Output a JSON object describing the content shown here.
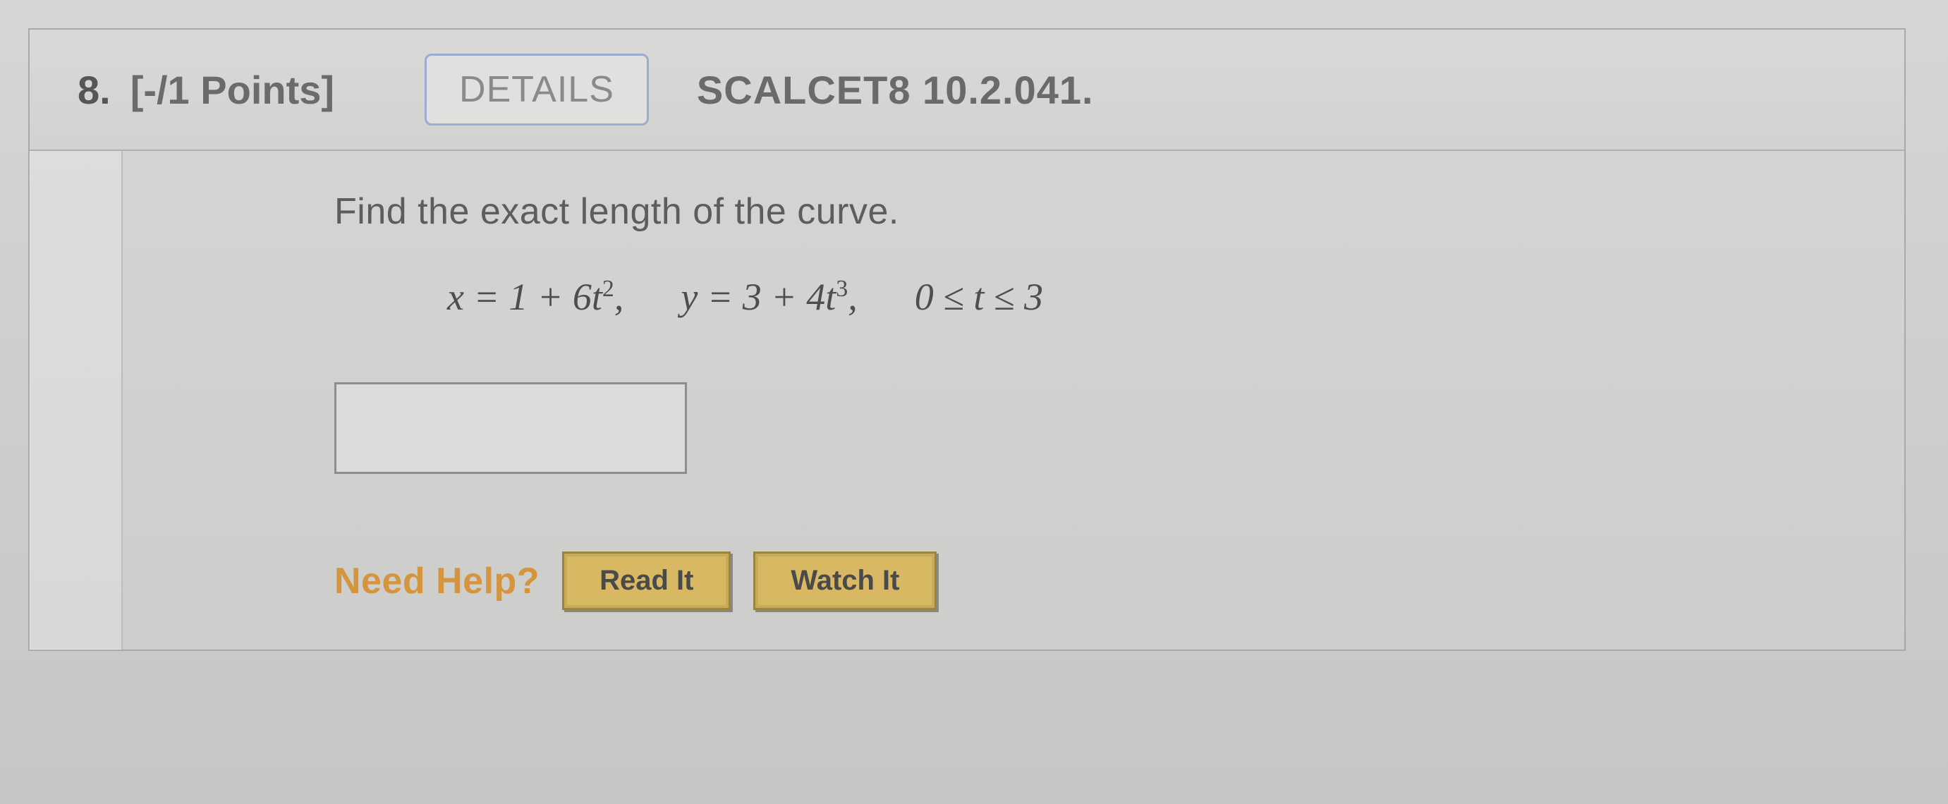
{
  "question": {
    "number": "8.",
    "points_label": "[-/1 Points]",
    "details_button": "DETAILS",
    "source_code": "SCALCET8 10.2.041.",
    "prompt": "Find the exact length of the curve.",
    "equation": {
      "x_lhs": "x",
      "x_rhs_prefix": "= 1 + 6",
      "x_rhs_var": "t",
      "x_rhs_exp": "2",
      "sep1": ",",
      "y_lhs": "y",
      "y_rhs_prefix": "= 3 + 4",
      "y_rhs_var": "t",
      "y_rhs_exp": "3",
      "sep2": ",",
      "range": "0 ≤ t ≤ 3"
    },
    "answer_value": "",
    "help": {
      "label": "Need Help?",
      "read_button": "Read It",
      "watch_button": "Watch It"
    }
  },
  "colors": {
    "accent_orange": "#d4953c",
    "button_gold": "#d8b862",
    "details_border": "#9aaccf",
    "card_border": "#a9a9a7",
    "text_dark": "#565656",
    "text_med": "#6b6b6b"
  }
}
